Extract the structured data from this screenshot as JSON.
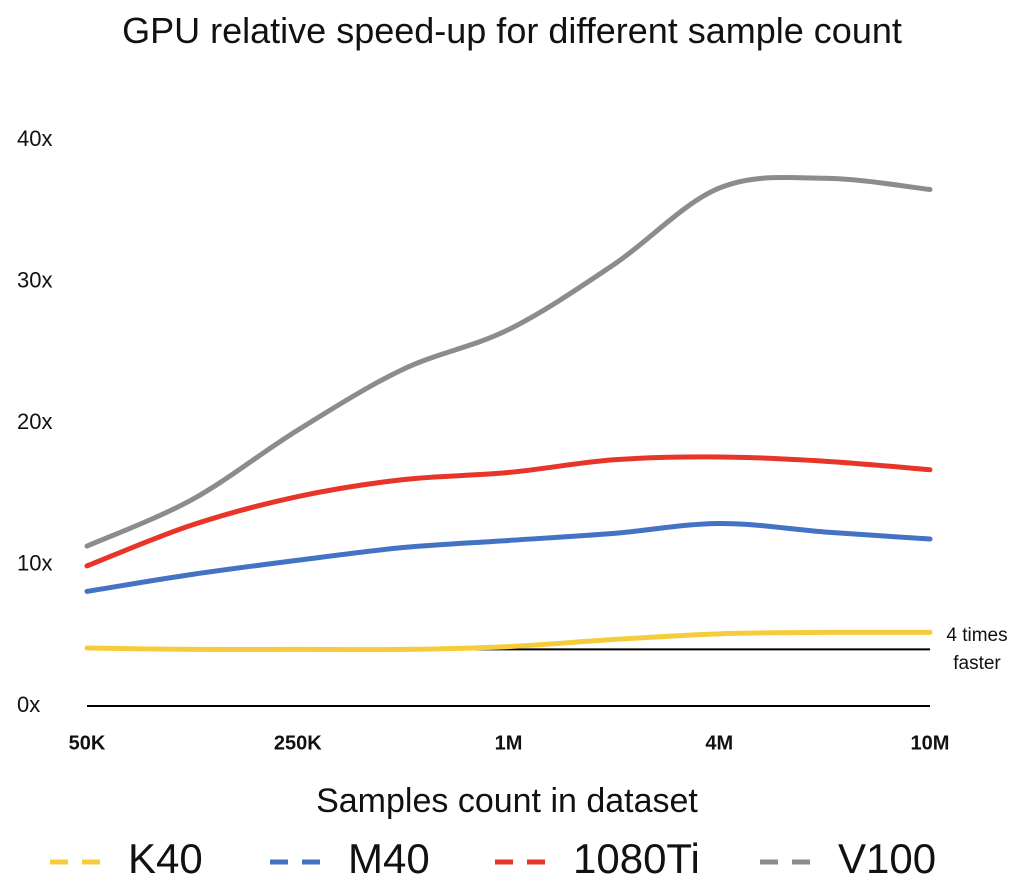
{
  "chart_data": {
    "type": "line",
    "title": "GPU  relative speed-up for different sample count",
    "x_label": "Samples count in dataset",
    "categories": [
      "50K",
      null,
      "250K",
      null,
      "1M",
      null,
      "4M",
      null,
      "10M"
    ],
    "series": [
      {
        "name": "K40",
        "color": "#f5cd3c",
        "values": [
          4.1,
          4.0,
          4.0,
          4.0,
          4.2,
          4.7,
          5.1,
          5.2,
          5.2
        ]
      },
      {
        "name": "M40",
        "color": "#4472c4",
        "values": [
          8.1,
          9.3,
          10.3,
          11.2,
          11.7,
          12.2,
          12.9,
          12.3,
          11.8
        ]
      },
      {
        "name": "1080Ti",
        "color": "#e8352a",
        "values": [
          9.9,
          12.8,
          14.8,
          16.0,
          16.5,
          17.4,
          17.6,
          17.3,
          16.7
        ]
      },
      {
        "name": "V100",
        "color": "#8c8c8c",
        "values": [
          11.3,
          14.6,
          19.5,
          23.8,
          26.6,
          31.2,
          36.6,
          37.3,
          36.5
        ]
      }
    ],
    "ylim": [
      0,
      40
    ],
    "yticks": [
      {
        "value": 0,
        "label": "0x"
      },
      {
        "value": 10,
        "label": "10x"
      },
      {
        "value": 20,
        "label": "20x"
      },
      {
        "value": 30,
        "label": "30x"
      },
      {
        "value": 40,
        "label": "40x"
      }
    ],
    "reference_line": 4,
    "annotation": [
      "4 times",
      "faster"
    ],
    "legend": "bottom"
  }
}
